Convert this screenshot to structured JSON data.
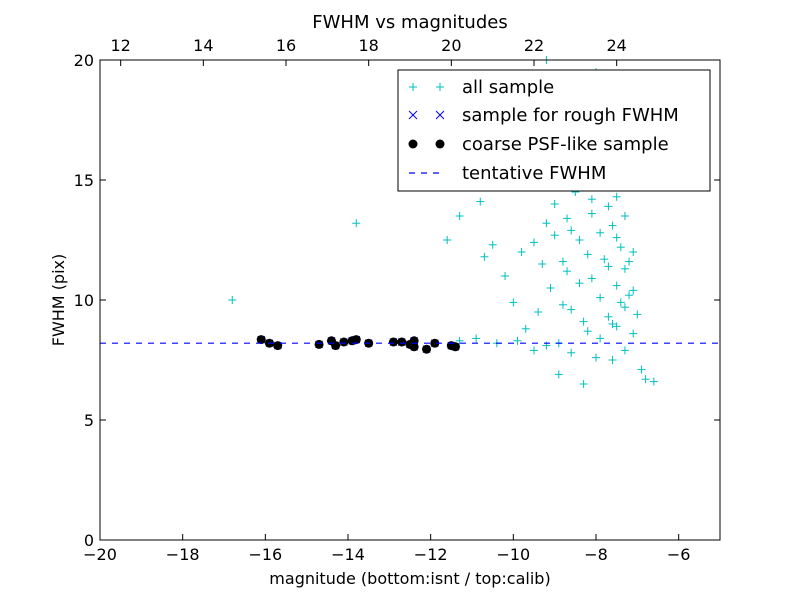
{
  "chart_data": {
    "type": "scatter",
    "title": "FWHM vs magnitudes",
    "xlabel": "magnitude (bottom:isnt / top:calib)",
    "ylabel": "FWHM (pix)",
    "xlim": [
      -20,
      -5
    ],
    "ylim": [
      0,
      20
    ],
    "x_ticks": [
      -20,
      -18,
      -16,
      -14,
      -12,
      -10,
      -8,
      -6
    ],
    "x_tick_labels": [
      "−20",
      "−18",
      "−16",
      "−14",
      "−12",
      "−10",
      "−8",
      "−6"
    ],
    "y_ticks": [
      0,
      5,
      10,
      15,
      20
    ],
    "y_tick_labels": [
      "0",
      "5",
      "10",
      "15",
      "20"
    ],
    "top_axis": {
      "label_offset": 31.5,
      "ticks": [
        12,
        14,
        16,
        18,
        20,
        22,
        24
      ],
      "tick_labels": [
        "12",
        "14",
        "16",
        "18",
        "20",
        "22",
        "24"
      ]
    },
    "grid": false,
    "legend_position": "top-right",
    "colors": {
      "all_sample": "#00bfbf",
      "rough_sample": "#0000ff",
      "psf_sample": "#000000",
      "tentative_fwhm": "#0000ff"
    },
    "series": [
      {
        "name": "all sample",
        "marker": "plus",
        "points": [
          [
            -16.8,
            10.0
          ],
          [
            -13.8,
            13.2
          ],
          [
            -11.3,
            13.5
          ],
          [
            -11.6,
            12.5
          ],
          [
            -10.8,
            14.1
          ],
          [
            -10.5,
            12.3
          ],
          [
            -10.7,
            11.8
          ],
          [
            -10.2,
            11.0
          ],
          [
            -10.0,
            9.9
          ],
          [
            -9.8,
            12.0
          ],
          [
            -9.5,
            12.4
          ],
          [
            -9.7,
            8.8
          ],
          [
            -9.4,
            9.5
          ],
          [
            -9.3,
            11.5
          ],
          [
            -9.2,
            13.2
          ],
          [
            -9.0,
            14.0
          ],
          [
            -9.1,
            10.5
          ],
          [
            -8.9,
            8.2
          ],
          [
            -8.8,
            9.8
          ],
          [
            -8.7,
            11.2
          ],
          [
            -8.6,
            12.9
          ],
          [
            -8.5,
            14.5
          ],
          [
            -8.4,
            10.7
          ],
          [
            -8.3,
            9.1
          ],
          [
            -8.2,
            11.9
          ],
          [
            -8.1,
            13.6
          ],
          [
            -8.0,
            15.2
          ],
          [
            -7.9,
            10.1
          ],
          [
            -7.9,
            12.8
          ],
          [
            -7.8,
            16.0
          ],
          [
            -7.7,
            11.4
          ],
          [
            -7.7,
            9.3
          ],
          [
            -7.6,
            13.1
          ],
          [
            -7.6,
            15.8
          ],
          [
            -7.5,
            10.6
          ],
          [
            -7.5,
            8.9
          ],
          [
            -7.4,
            12.2
          ],
          [
            -7.4,
            14.7
          ],
          [
            -7.3,
            9.7
          ],
          [
            -7.3,
            11.3
          ],
          [
            -7.2,
            10.2
          ],
          [
            -7.1,
            8.6
          ],
          [
            -7.1,
            12.0
          ],
          [
            -7.0,
            9.4
          ],
          [
            -6.9,
            7.1
          ],
          [
            -6.8,
            6.7
          ],
          [
            -6.6,
            6.6
          ],
          [
            -7.3,
            7.9
          ],
          [
            -7.6,
            7.5
          ],
          [
            -8.0,
            7.6
          ],
          [
            -8.3,
            6.5
          ],
          [
            -8.6,
            7.8
          ],
          [
            -8.9,
            6.9
          ],
          [
            -9.2,
            8.1
          ],
          [
            -9.5,
            7.9
          ],
          [
            -9.9,
            8.3
          ],
          [
            -10.4,
            8.2
          ],
          [
            -10.9,
            8.4
          ],
          [
            -11.3,
            8.3
          ],
          [
            -8.1,
            10.9
          ],
          [
            -7.8,
            11.7
          ],
          [
            -7.7,
            13.9
          ],
          [
            -7.5,
            12.6
          ],
          [
            -7.4,
            9.9
          ],
          [
            -8.4,
            12.5
          ],
          [
            -8.7,
            13.4
          ],
          [
            -8.8,
            11.6
          ],
          [
            -9.0,
            12.7
          ],
          [
            -8.6,
            9.6
          ],
          [
            -8.2,
            8.7
          ],
          [
            -7.9,
            8.4
          ],
          [
            -7.6,
            9.0
          ],
          [
            -7.2,
            11.6
          ],
          [
            -7.1,
            10.4
          ],
          [
            -7.3,
            13.5
          ],
          [
            -7.5,
            14.3
          ],
          [
            -7.7,
            16.8
          ],
          [
            -7.9,
            17.5
          ],
          [
            -8.1,
            14.2
          ],
          [
            -8.3,
            16.2
          ],
          [
            -8.5,
            15.5
          ],
          [
            -8.7,
            17.2
          ],
          [
            -7.8,
            18.2
          ],
          [
            -8.0,
            19.5
          ],
          [
            -9.2,
            20.0
          ]
        ]
      },
      {
        "name": "sample for rough FWHM",
        "marker": "x",
        "points": [
          [
            -16.1,
            8.35
          ],
          [
            -15.9,
            8.2
          ],
          [
            -15.7,
            8.1
          ],
          [
            -14.7,
            8.15
          ],
          [
            -14.4,
            8.3
          ],
          [
            -14.3,
            8.1
          ],
          [
            -14.1,
            8.25
          ],
          [
            -13.9,
            8.3
          ],
          [
            -13.8,
            8.35
          ],
          [
            -13.5,
            8.2
          ],
          [
            -12.9,
            8.25
          ],
          [
            -12.7,
            8.25
          ],
          [
            -12.5,
            8.15
          ],
          [
            -12.4,
            8.05
          ],
          [
            -12.4,
            8.3
          ],
          [
            -12.1,
            7.95
          ],
          [
            -11.9,
            8.2
          ],
          [
            -11.5,
            8.1
          ],
          [
            -11.4,
            8.05
          ]
        ]
      },
      {
        "name": "coarse PSF-like sample",
        "marker": "circle",
        "points": [
          [
            -16.1,
            8.35
          ],
          [
            -15.9,
            8.2
          ],
          [
            -15.7,
            8.1
          ],
          [
            -14.7,
            8.15
          ],
          [
            -14.4,
            8.3
          ],
          [
            -14.3,
            8.1
          ],
          [
            -14.1,
            8.25
          ],
          [
            -13.9,
            8.3
          ],
          [
            -13.8,
            8.35
          ],
          [
            -13.5,
            8.2
          ],
          [
            -12.9,
            8.25
          ],
          [
            -12.7,
            8.25
          ],
          [
            -12.5,
            8.15
          ],
          [
            -12.4,
            8.05
          ],
          [
            -12.4,
            8.3
          ],
          [
            -12.1,
            7.95
          ],
          [
            -11.9,
            8.2
          ],
          [
            -11.5,
            8.1
          ],
          [
            -11.4,
            8.05
          ]
        ]
      },
      {
        "name": "tentative FWHM",
        "marker": "dashed-line",
        "value": 8.2
      }
    ]
  }
}
